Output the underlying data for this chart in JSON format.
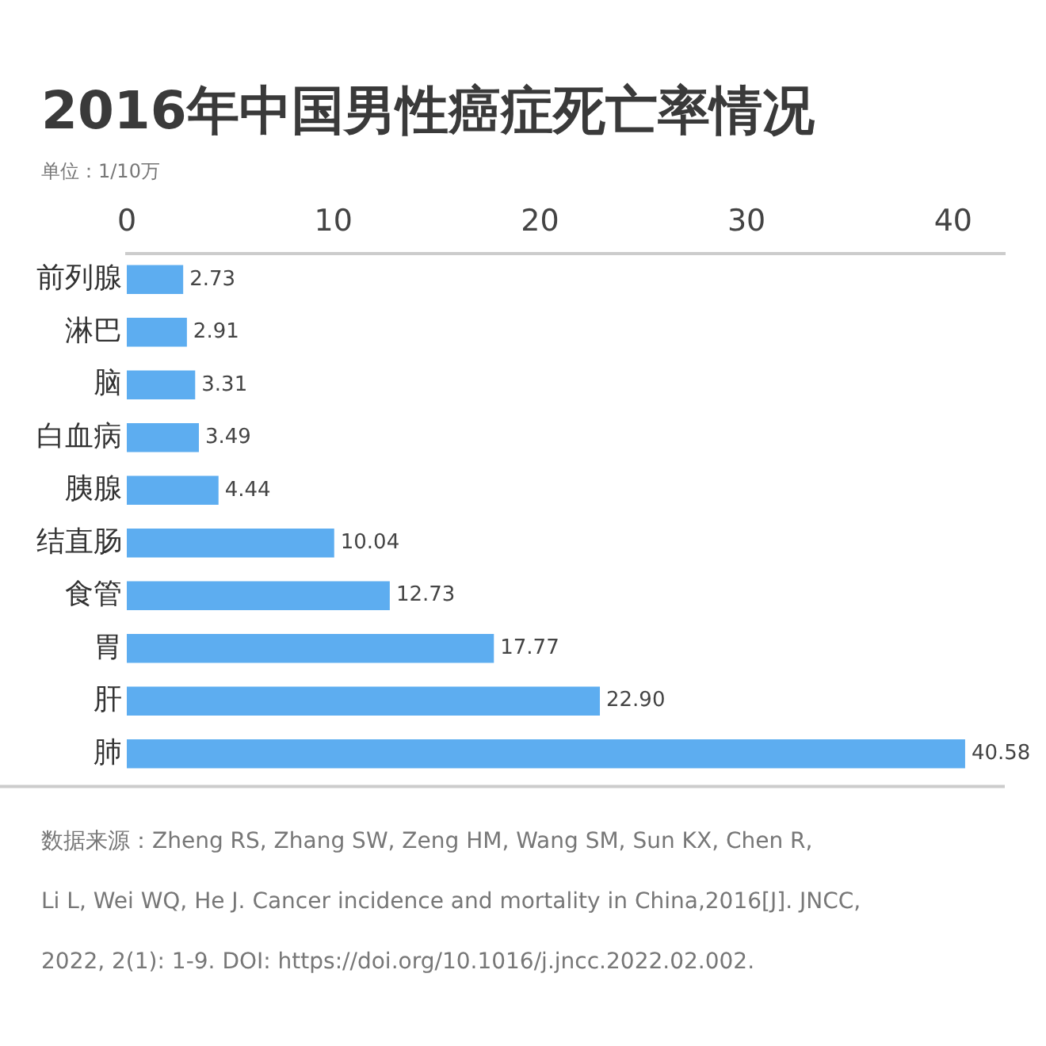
{
  "chart_data": {
    "type": "bar",
    "orientation": "horizontal",
    "title": "2016年中国男性癌症死亡率情况",
    "subtitle": "单位：1/10万",
    "categories": [
      "前列腺",
      "淋巴",
      "脑",
      "白血病",
      "胰腺",
      "结直肠",
      "食管",
      "胃",
      "肝",
      "肺"
    ],
    "values": [
      2.73,
      2.91,
      3.31,
      3.49,
      4.44,
      10.04,
      12.73,
      17.77,
      22.9,
      40.58
    ],
    "value_labels": [
      "2.73",
      "2.91",
      "3.31",
      "3.49",
      "4.44",
      "10.04",
      "12.73",
      "17.77",
      "22.90",
      "40.58"
    ],
    "color": "#5dadf0",
    "xlim": [
      0,
      42.5
    ],
    "xticks": [
      0,
      10,
      20,
      30,
      40
    ],
    "grid": false,
    "legend": false,
    "annotations": [
      "数据来源：Zheng RS, Zhang SW, Zeng HM, Wang SM, Sun KX, Chen R,",
      "Li L, Wei WQ, He J. Cancer incidence and mortality in China,2016[J]. JNCC,",
      "2022, 2(1): 1-9. DOI: https://doi.org/10.1016/j.jncc.2022.02.002."
    ]
  }
}
